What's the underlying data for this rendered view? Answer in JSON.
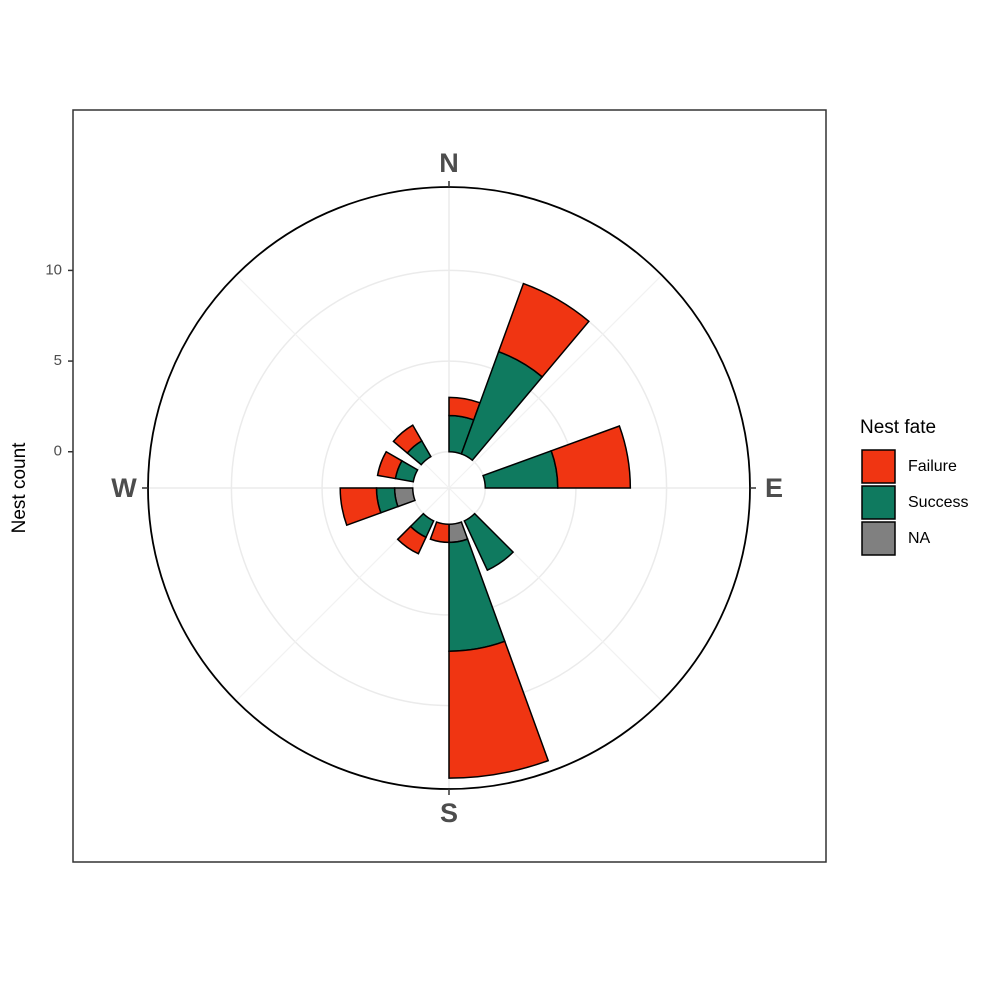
{
  "chart_data": {
    "type": "polar_bar",
    "y_label": "Nest count",
    "legend_title": "Nest fate",
    "x": [
      10,
      30,
      80,
      145,
      170,
      190,
      215,
      260,
      290,
      320
    ],
    "xlim": [
      0,
      360
    ],
    "xticks": [
      {
        "value": 0,
        "label": "N"
      },
      {
        "value": 90,
        "label": "E"
      },
      {
        "value": 180,
        "label": "S"
      },
      {
        "value": 270,
        "label": "W"
      }
    ],
    "ylim": [
      -2,
      14.6
    ],
    "yticks": [
      0,
      5,
      10
    ],
    "grid": true,
    "legend": "right",
    "series": [
      {
        "name": "Failure",
        "color": "#f03512",
        "values": [
          1,
          4,
          4,
          null,
          7,
          1,
          1,
          2,
          1,
          1
        ]
      },
      {
        "name": "Success",
        "color": "#0f7a5f",
        "values": [
          2,
          6,
          4,
          3,
          6,
          null,
          1,
          1,
          1,
          1
        ]
      },
      {
        "name": "NA",
        "color": "#808080",
        "values": [
          null,
          null,
          null,
          null,
          1,
          null,
          null,
          1,
          null,
          null
        ]
      }
    ]
  }
}
